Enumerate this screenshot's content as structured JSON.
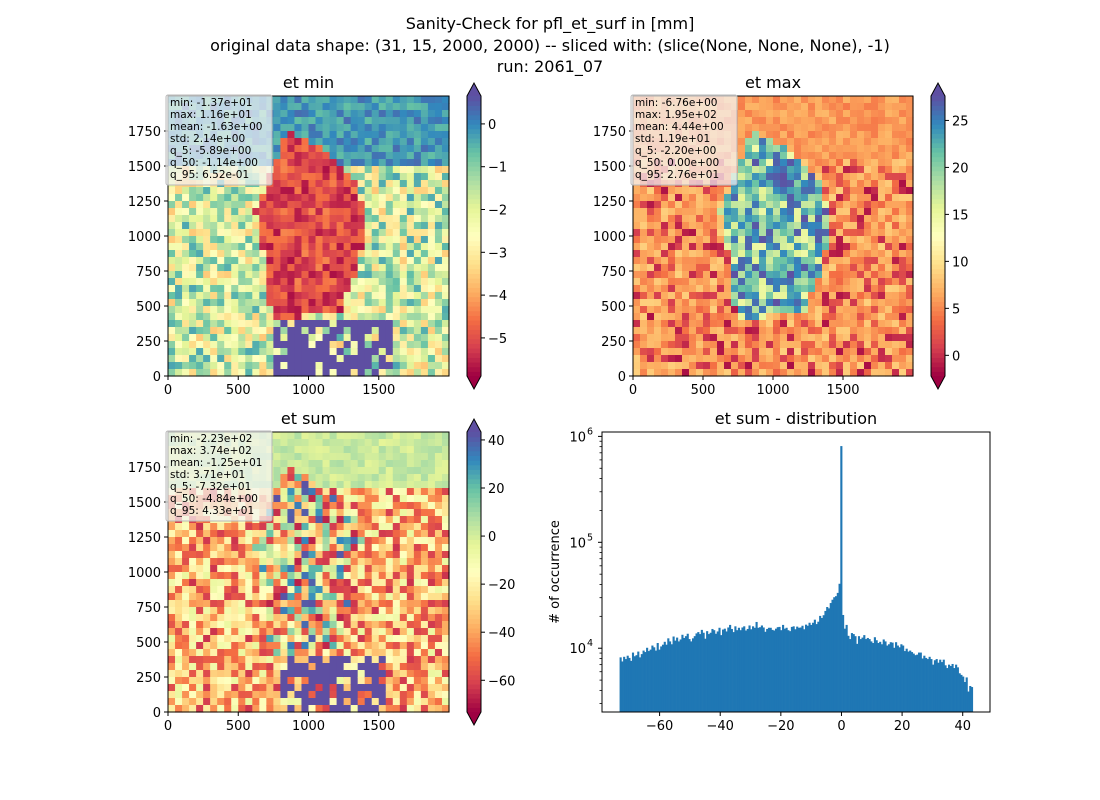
{
  "figure": {
    "title_lines": [
      "Sanity-Check for pfl_et_surf in [mm]",
      "original data shape: (31, 15, 2000, 2000) -- sliced with: (slice(None, None, None), -1)",
      "run: 2061_07"
    ]
  },
  "colors": {
    "bar": "#1f77b4",
    "spectral": [
      "#9e0142",
      "#d53e4f",
      "#f46d43",
      "#fdae61",
      "#fee08b",
      "#ffffbf",
      "#e6f598",
      "#abdda4",
      "#66c2a5",
      "#3288bd",
      "#5e4fa2"
    ]
  },
  "icons": {
    "colorbar_extend": "triangle-arrow"
  },
  "chart_data": [
    {
      "type": "heatmap",
      "title": "et min",
      "xlim": [
        0,
        2000
      ],
      "ylim": [
        0,
        2000
      ],
      "xticks": [
        0,
        500,
        1000,
        1500
      ],
      "yticks": [
        0,
        250,
        500,
        750,
        1000,
        1250,
        1500,
        1750
      ],
      "colorbar": {
        "vmin": -5.89,
        "vmax": 0.652,
        "ticks": [
          0,
          -1,
          -2,
          -3,
          -4,
          -5
        ],
        "cmap": "Spectral",
        "extend": "both"
      },
      "stats_box": [
        "min: -1.37e+01",
        "max: 1.16e+01",
        "mean: -1.63e+00",
        "std: 2.14e+00",
        "q_5: -5.89e+00",
        "q_50: -1.14e+00",
        "q_95: 6.52e-01"
      ]
    },
    {
      "type": "heatmap",
      "title": "et max",
      "xlim": [
        0,
        2000
      ],
      "ylim": [
        0,
        2000
      ],
      "xticks": [
        0,
        500,
        1000,
        1500
      ],
      "yticks": [
        0,
        250,
        500,
        750,
        1000,
        1250,
        1500,
        1750
      ],
      "colorbar": {
        "vmin": -2.2,
        "vmax": 27.6,
        "ticks": [
          25,
          20,
          15,
          10,
          5,
          0
        ],
        "cmap": "Spectral",
        "extend": "both"
      },
      "stats_box": [
        "min: -6.76e+00",
        "max: 1.95e+02",
        "mean: 4.44e+00",
        "std: 1.19e+01",
        "q_5: -2.20e+00",
        "q_50: 0.00e+00",
        "q_95: 2.76e+01"
      ]
    },
    {
      "type": "heatmap",
      "title": "et sum",
      "xlim": [
        0,
        2000
      ],
      "ylim": [
        0,
        2000
      ],
      "xticks": [
        0,
        500,
        1000,
        1500
      ],
      "yticks": [
        0,
        250,
        500,
        750,
        1000,
        1250,
        1500,
        1750
      ],
      "colorbar": {
        "vmin": -73.2,
        "vmax": 43.3,
        "ticks": [
          40,
          20,
          0,
          -20,
          -40,
          -60
        ],
        "cmap": "Spectral",
        "extend": "both"
      },
      "stats_box": [
        "min: -2.23e+02",
        "max: 3.74e+02",
        "mean: -1.25e+01",
        "std: 3.71e+01",
        "q_5: -7.32e+01",
        "q_50: -4.84e+00",
        "q_95: 4.33e+01"
      ]
    },
    {
      "type": "bar",
      "title": "et sum - distribution",
      "ylabel": "# of occurrence",
      "yscale": "log",
      "xlim": [
        -79,
        49
      ],
      "ylim": [
        2500,
        1100000
      ],
      "xticks": [
        -60,
        -40,
        -20,
        0,
        20,
        40
      ],
      "xtick_labels": [
        "−60",
        "−40",
        "−20",
        "0",
        "20",
        "40"
      ],
      "yticks": [
        {
          "base": "10",
          "exp": "4",
          "value": 10000
        },
        {
          "base": "10",
          "exp": "5",
          "value": 100000
        },
        {
          "base": "10",
          "exp": "6",
          "value": 1000000
        }
      ],
      "bin_range": [
        -73.2,
        43.3
      ],
      "bin_count": 200,
      "values": [
        8200,
        7500,
        8300,
        7900,
        8500,
        8100,
        7600,
        9100,
        8400,
        8600,
        9300,
        8200,
        8800,
        9500,
        9200,
        10100,
        9400,
        9700,
        10600,
        10200,
        9500,
        11200,
        9700,
        10400,
        10800,
        11500,
        10800,
        12400,
        11600,
        10900,
        12900,
        11800,
        12600,
        11600,
        12100,
        13400,
        12500,
        13000,
        13700,
        12200,
        11600,
        12400,
        13000,
        13800,
        14200,
        13600,
        14900,
        14000,
        12300,
        14500,
        13600,
        14000,
        15200,
        14800,
        13700,
        14400,
        15600,
        13300,
        15000,
        15300,
        14400,
        15700,
        16600,
        15200,
        14200,
        16100,
        14800,
        15600,
        14800,
        15700,
        16100,
        14700,
        15200,
        16400,
        15100,
        16100,
        15600,
        17700,
        15600,
        15800,
        16400,
        15700,
        14300,
        15200,
        15600,
        15600,
        14900,
        14700,
        15300,
        15800,
        15900,
        14800,
        16600,
        15300,
        15600,
        14800,
        14500,
        15900,
        16100,
        15100,
        16000,
        15600,
        15700,
        16300,
        15100,
        16700,
        16300,
        17400,
        16600,
        17400,
        18600,
        16900,
        17800,
        20200,
        19300,
        20500,
        22500,
        24500,
        23800,
        26700,
        28700,
        30300,
        31000,
        33300,
        40600,
        810000,
        20600,
        15300,
        16600,
        13100,
        12200,
        13900,
        13600,
        13000,
        11000,
        13000,
        12200,
        12600,
        13300,
        12200,
        12500,
        12200,
        11600,
        11200,
        12700,
        11900,
        11200,
        11500,
        10900,
        12100,
        11600,
        10600,
        10900,
        11400,
        11300,
        10100,
        11400,
        10600,
        10200,
        10900,
        10600,
        9400,
        9900,
        9300,
        9500,
        9200,
        8900,
        8600,
        8700,
        9100,
        9100,
        8000,
        8500,
        8100,
        7900,
        8300,
        7900,
        7000,
        7700,
        7900,
        7300,
        7800,
        7400,
        7800,
        6900,
        6500,
        7000,
        6800,
        7100,
        6500,
        7000,
        6600,
        5800,
        5600,
        5400,
        4800,
        5300,
        3900,
        4400,
        4300
      ]
    }
  ]
}
